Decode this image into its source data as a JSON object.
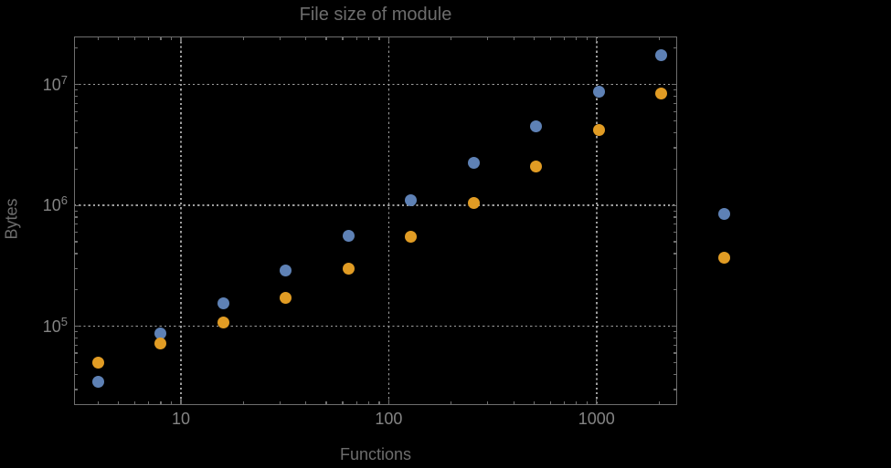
{
  "colors": {
    "background": "#000000",
    "title": "#6d6d6d",
    "axis_label": "#6d6d6d",
    "tick_label": "#848484",
    "frame": "#6e6e6e",
    "grid": "#9e9e9e"
  },
  "chart_data": {
    "type": "scatter",
    "title": "File size of module",
    "xlabel": "Functions",
    "ylabel": "Bytes",
    "x_scale": "log",
    "y_scale": "log",
    "xlim": [
      3.06,
      2430
    ],
    "ylim": [
      22500,
      25000000
    ],
    "grid": "dotted",
    "legend": "none",
    "x_major_ticks": [
      10,
      100,
      1000
    ],
    "x_major_labels": [
      "10",
      "100",
      "1000"
    ],
    "y_major_ticks": [
      100000,
      1000000,
      10000000
    ],
    "y_major_labels": [
      {
        "base": "10",
        "exp": "5"
      },
      {
        "base": "10",
        "exp": "6"
      },
      {
        "base": "10",
        "exp": "7"
      }
    ],
    "x": [
      4,
      8,
      16,
      32,
      64,
      128,
      256,
      512,
      1024,
      2048,
      4096
    ],
    "series": [
      {
        "name": "series-1-blue",
        "color": "#5E81B5",
        "values": [
          35000,
          88000,
          155000,
          290000,
          560000,
          1100000,
          2250000,
          4500000,
          8700000,
          17500000,
          850000
        ]
      },
      {
        "name": "series-2-orange",
        "color": "#E19C24",
        "values": [
          50000,
          72000,
          108000,
          173000,
          300000,
          550000,
          1050000,
          2100000,
          4200000,
          8400000,
          370000
        ]
      }
    ]
  }
}
